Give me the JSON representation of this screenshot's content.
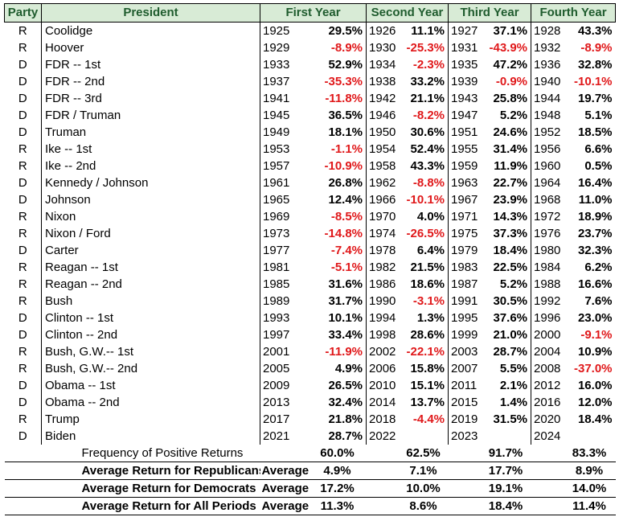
{
  "headers": {
    "party": "Party",
    "president": "President",
    "first": "First Year",
    "second": "Second Year",
    "third": "Third Year",
    "fourth": "Fourth Year"
  },
  "rows": [
    {
      "party": "R",
      "name": "Coolidge",
      "y1": "1925",
      "r1": "29.5%",
      "y2": "1926",
      "r2": "11.1%",
      "y3": "1927",
      "r3": "37.1%",
      "y4": "1928",
      "r4": "43.3%"
    },
    {
      "party": "R",
      "name": "Hoover",
      "y1": "1929",
      "r1": "-8.9%",
      "y2": "1930",
      "r2": "-25.3%",
      "y3": "1931",
      "r3": "-43.9%",
      "y4": "1932",
      "r4": "-8.9%"
    },
    {
      "party": "D",
      "name": "FDR -- 1st",
      "y1": "1933",
      "r1": "52.9%",
      "y2": "1934",
      "r2": "-2.3%",
      "y3": "1935",
      "r3": "47.2%",
      "y4": "1936",
      "r4": "32.8%"
    },
    {
      "party": "D",
      "name": "FDR -- 2nd",
      "y1": "1937",
      "r1": "-35.3%",
      "y2": "1938",
      "r2": "33.2%",
      "y3": "1939",
      "r3": "-0.9%",
      "y4": "1940",
      "r4": "-10.1%"
    },
    {
      "party": "D",
      "name": "FDR -- 3rd",
      "y1": "1941",
      "r1": "-11.8%",
      "y2": "1942",
      "r2": "21.1%",
      "y3": "1943",
      "r3": "25.8%",
      "y4": "1944",
      "r4": "19.7%"
    },
    {
      "party": "D",
      "name": "FDR / Truman",
      "y1": "1945",
      "r1": "36.5%",
      "y2": "1946",
      "r2": "-8.2%",
      "y3": "1947",
      "r3": "5.2%",
      "y4": "1948",
      "r4": "5.1%"
    },
    {
      "party": "D",
      "name": "Truman",
      "y1": "1949",
      "r1": "18.1%",
      "y2": "1950",
      "r2": "30.6%",
      "y3": "1951",
      "r3": "24.6%",
      "y4": "1952",
      "r4": "18.5%"
    },
    {
      "party": "R",
      "name": "Ike -- 1st",
      "y1": "1953",
      "r1": "-1.1%",
      "y2": "1954",
      "r2": "52.4%",
      "y3": "1955",
      "r3": "31.4%",
      "y4": "1956",
      "r4": "6.6%"
    },
    {
      "party": "R",
      "name": "Ike -- 2nd",
      "y1": "1957",
      "r1": "-10.9%",
      "y2": "1958",
      "r2": "43.3%",
      "y3": "1959",
      "r3": "11.9%",
      "y4": "1960",
      "r4": "0.5%"
    },
    {
      "party": "D",
      "name": "Kennedy / Johnson",
      "y1": "1961",
      "r1": "26.8%",
      "y2": "1962",
      "r2": "-8.8%",
      "y3": "1963",
      "r3": "22.7%",
      "y4": "1964",
      "r4": "16.4%"
    },
    {
      "party": "D",
      "name": "Johnson",
      "y1": "1965",
      "r1": "12.4%",
      "y2": "1966",
      "r2": "-10.1%",
      "y3": "1967",
      "r3": "23.9%",
      "y4": "1968",
      "r4": "11.0%"
    },
    {
      "party": "R",
      "name": "Nixon",
      "y1": "1969",
      "r1": "-8.5%",
      "y2": "1970",
      "r2": "4.0%",
      "y3": "1971",
      "r3": "14.3%",
      "y4": "1972",
      "r4": "18.9%"
    },
    {
      "party": "R",
      "name": "Nixon / Ford",
      "y1": "1973",
      "r1": "-14.8%",
      "y2": "1974",
      "r2": "-26.5%",
      "y3": "1975",
      "r3": "37.3%",
      "y4": "1976",
      "r4": "23.7%"
    },
    {
      "party": "D",
      "name": "Carter",
      "y1": "1977",
      "r1": "-7.4%",
      "y2": "1978",
      "r2": "6.4%",
      "y3": "1979",
      "r3": "18.4%",
      "y4": "1980",
      "r4": "32.3%"
    },
    {
      "party": "R",
      "name": "Reagan -- 1st",
      "y1": "1981",
      "r1": "-5.1%",
      "y2": "1982",
      "r2": "21.5%",
      "y3": "1983",
      "r3": "22.5%",
      "y4": "1984",
      "r4": "6.2%"
    },
    {
      "party": "R",
      "name": "Reagan -- 2nd",
      "y1": "1985",
      "r1": "31.6%",
      "y2": "1986",
      "r2": "18.6%",
      "y3": "1987",
      "r3": "5.2%",
      "y4": "1988",
      "r4": "16.6%"
    },
    {
      "party": "R",
      "name": "Bush",
      "y1": "1989",
      "r1": "31.7%",
      "y2": "1990",
      "r2": "-3.1%",
      "y3": "1991",
      "r3": "30.5%",
      "y4": "1992",
      "r4": "7.6%"
    },
    {
      "party": "D",
      "name": "Clinton -- 1st",
      "y1": "1993",
      "r1": "10.1%",
      "y2": "1994",
      "r2": "1.3%",
      "y3": "1995",
      "r3": "37.6%",
      "y4": "1996",
      "r4": "23.0%"
    },
    {
      "party": "D",
      "name": "Clinton -- 2nd",
      "y1": "1997",
      "r1": "33.4%",
      "y2": "1998",
      "r2": "28.6%",
      "y3": "1999",
      "r3": "21.0%",
      "y4": "2000",
      "r4": "-9.1%"
    },
    {
      "party": "R",
      "name": "Bush, G.W.-- 1st",
      "y1": "2001",
      "r1": "-11.9%",
      "y2": "2002",
      "r2": "-22.1%",
      "y3": "2003",
      "r3": "28.7%",
      "y4": "2004",
      "r4": "10.9%"
    },
    {
      "party": "R",
      "name": "Bush, G.W.-- 2nd",
      "y1": "2005",
      "r1": "4.9%",
      "y2": "2006",
      "r2": "15.8%",
      "y3": "2007",
      "r3": "5.5%",
      "y4": "2008",
      "r4": "-37.0%"
    },
    {
      "party": "D",
      "name": "Obama -- 1st",
      "y1": "2009",
      "r1": "26.5%",
      "y2": "2010",
      "r2": "15.1%",
      "y3": "2011",
      "r3": "2.1%",
      "y4": "2012",
      "r4": "16.0%"
    },
    {
      "party": "D",
      "name": "Obama -- 2nd",
      "y1": "2013",
      "r1": "32.4%",
      "y2": "2014",
      "r2": "13.7%",
      "y3": "2015",
      "r3": "1.4%",
      "y4": "2016",
      "r4": "12.0%"
    },
    {
      "party": "R",
      "name": "Trump",
      "y1": "2017",
      "r1": "21.8%",
      "y2": "2018",
      "r2": "-4.4%",
      "y3": "2019",
      "r3": "31.5%",
      "y4": "2020",
      "r4": "18.4%"
    },
    {
      "party": "D",
      "name": "Biden",
      "y1": "2021",
      "r1": "28.7%",
      "y2": "2022",
      "r2": "",
      "y3": "2023",
      "r3": "",
      "y4": "2024",
      "r4": ""
    }
  ],
  "frequency": {
    "label": "Frequency of Positive Returns",
    "v1": "60.0%",
    "v2": "62.5%",
    "v3": "91.7%",
    "v4": "83.3%"
  },
  "averages": [
    {
      "label": "Average Return for Republicans",
      "mid": "Average",
      "v1": "4.9%",
      "v2": "7.1%",
      "v3": "17.7%",
      "v4": "8.9%"
    },
    {
      "label": "Average Return for Democrats",
      "mid": "Average",
      "v1": "17.2%",
      "v2": "10.0%",
      "v3": "19.1%",
      "v4": "14.0%"
    },
    {
      "label": "Average Return for All Periods",
      "mid": "Average",
      "v1": "11.3%",
      "v2": "8.6%",
      "v3": "18.4%",
      "v4": "11.4%"
    }
  ],
  "colors": {
    "header_bg": "#d8ebd6",
    "header_text": "#1f5c2e",
    "negative": "#e0191b"
  }
}
